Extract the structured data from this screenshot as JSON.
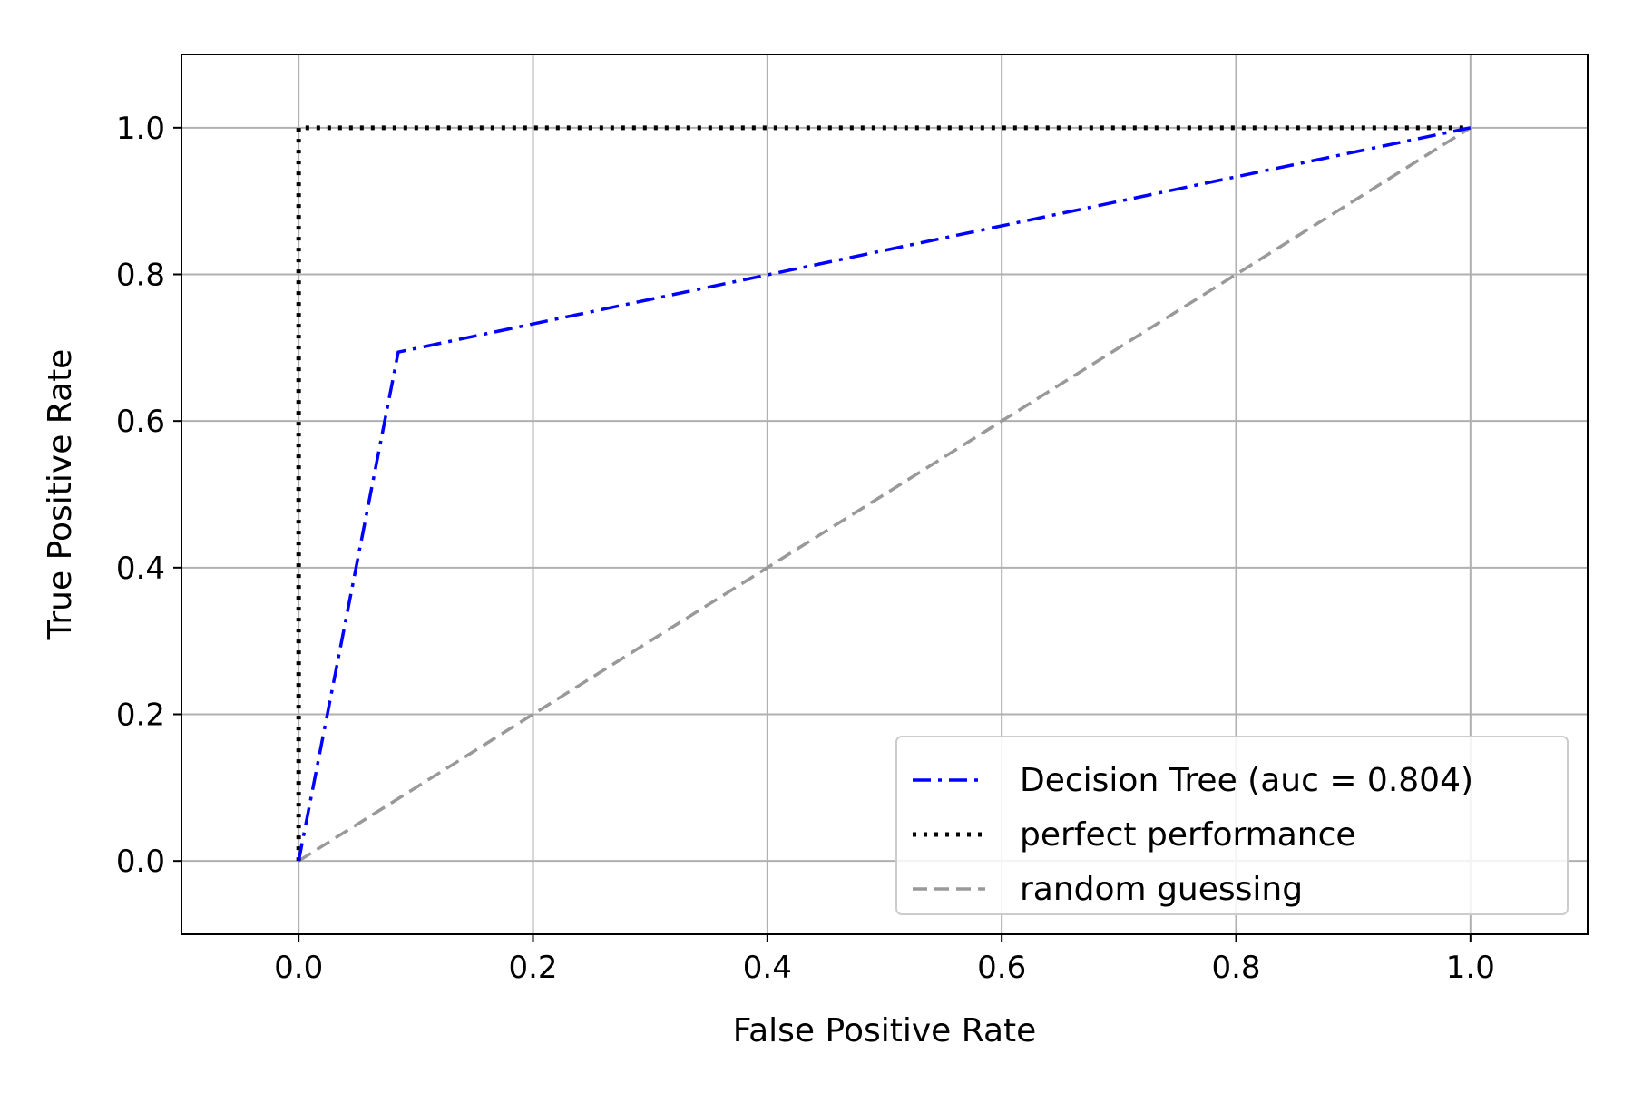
{
  "chart_data": {
    "type": "line",
    "title": "",
    "xlabel": "False Positive Rate",
    "ylabel": "True Positive Rate",
    "xlim": [
      -0.1,
      1.1
    ],
    "ylim": [
      -0.1,
      1.1
    ],
    "x_ticks": [
      "0.0",
      "0.2",
      "0.4",
      "0.6",
      "0.8",
      "1.0"
    ],
    "y_ticks": [
      "0.0",
      "0.2",
      "0.4",
      "0.6",
      "0.8",
      "1.0"
    ],
    "grid": true,
    "legend_position": "lower-right",
    "series": [
      {
        "name": "Decision Tree (auc = 0.804)",
        "x": [
          0.0,
          0.085,
          1.0
        ],
        "y": [
          0.0,
          0.694,
          1.0
        ],
        "color": "#0000ff",
        "style": "dash-dot"
      },
      {
        "name": "perfect performance",
        "x": [
          0.0,
          0.0,
          1.0
        ],
        "y": [
          0.0,
          1.0,
          1.0
        ],
        "color": "#000000",
        "style": "dotted"
      },
      {
        "name": "random guessing",
        "x": [
          0.0,
          1.0
        ],
        "y": [
          0.0,
          1.0
        ],
        "color": "#999999",
        "style": "dashed"
      }
    ]
  }
}
